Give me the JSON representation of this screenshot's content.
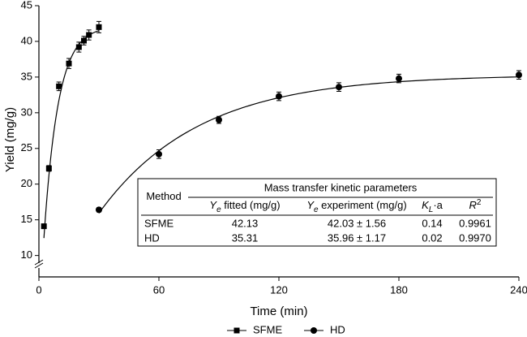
{
  "chart_data": {
    "type": "scatter",
    "x_label": "Time (min)",
    "y_label": "Yield (mg/g)",
    "xlim": [
      0,
      240
    ],
    "ylim": [
      7,
      45
    ],
    "xticks": [
      0,
      60,
      120,
      180,
      240
    ],
    "yticks": [
      10,
      15,
      20,
      25,
      30,
      35,
      40,
      45
    ],
    "series": [
      {
        "name": "SFME",
        "marker": "square",
        "color": "#000000",
        "x": [
          2.5,
          5,
          10,
          15,
          20,
          22.5,
          25,
          30
        ],
        "values": [
          14.1,
          22.2,
          33.7,
          36.9,
          39.2,
          40.1,
          40.9,
          42.0
        ],
        "errors": [
          0.3,
          0.4,
          0.6,
          0.7,
          0.7,
          0.6,
          0.7,
          0.8
        ]
      },
      {
        "name": "HD",
        "marker": "circle",
        "color": "#000000",
        "x": [
          30,
          60,
          90,
          120,
          150,
          180,
          240
        ],
        "values": [
          16.4,
          24.2,
          29.0,
          32.3,
          33.6,
          34.8,
          35.3
        ],
        "errors": [
          0.3,
          0.6,
          0.5,
          0.6,
          0.6,
          0.6,
          0.6
        ]
      }
    ],
    "table": {
      "title": "Mass transfer kinetic parameters",
      "headers": [
        {
          "main": "Method"
        },
        {
          "main": "Y",
          "sub": "e",
          "rest": " fitted (mg/g)"
        },
        {
          "main": "Y",
          "sub": "e",
          "rest": " experiment (mg/g)"
        },
        {
          "main": "K",
          "sub": "L",
          "rest": "·a"
        },
        {
          "main": "R",
          "sup": "2"
        }
      ],
      "rows": [
        [
          "SFME",
          42.13,
          "42.03 ± 1.56",
          0.14,
          0.9961
        ],
        [
          "HD",
          35.31,
          "35.96 ± 1.17",
          0.02,
          "0.9970"
        ]
      ]
    }
  }
}
